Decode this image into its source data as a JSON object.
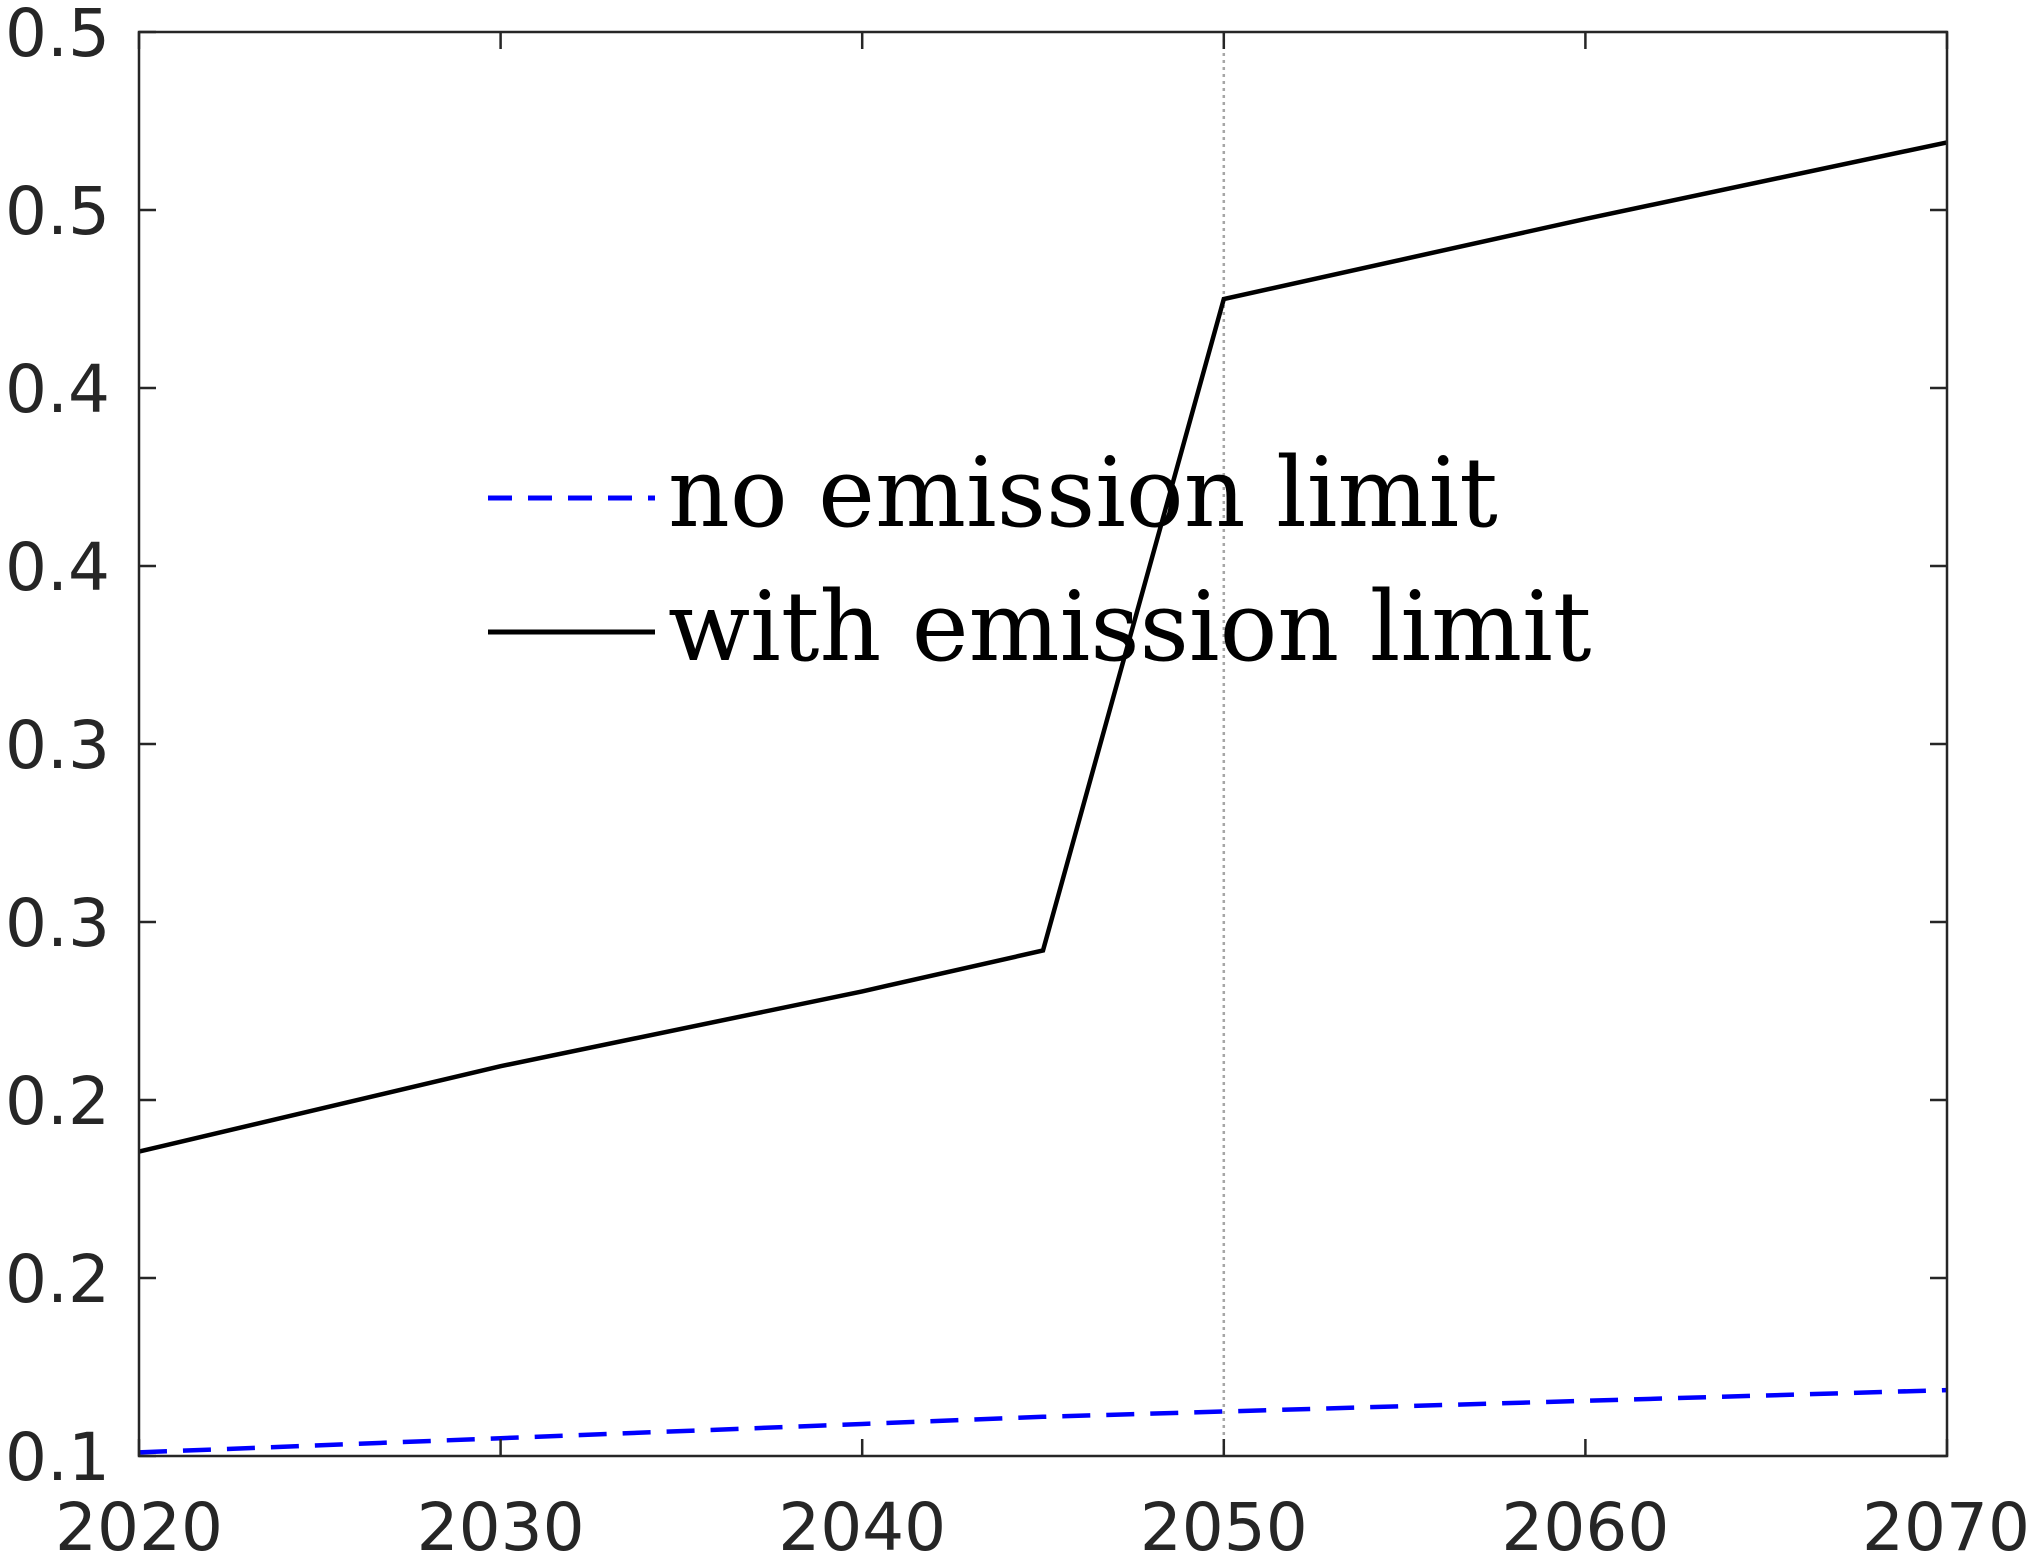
{
  "chart_data": {
    "type": "line",
    "title": "",
    "xlabel": "",
    "ylabel": "",
    "xlim": [
      2020,
      2070
    ],
    "ylim": [
      0.1,
      0.5
    ],
    "x_ticks": [
      {
        "value": 2020,
        "label": "2020"
      },
      {
        "value": 2030,
        "label": "2030"
      },
      {
        "value": 2040,
        "label": "2040"
      },
      {
        "value": 2050,
        "label": "2050"
      },
      {
        "value": 2060,
        "label": "2060"
      },
      {
        "value": 2070,
        "label": "2070"
      }
    ],
    "y_ticks": [
      {
        "value": 0.1,
        "label": "0.1"
      },
      {
        "value": 0.15,
        "label": "0.2"
      },
      {
        "value": 0.2,
        "label": "0.2"
      },
      {
        "value": 0.25,
        "label": "0.3"
      },
      {
        "value": 0.3,
        "label": "0.3"
      },
      {
        "value": 0.35,
        "label": "0.4"
      },
      {
        "value": 0.4,
        "label": "0.4"
      },
      {
        "value": 0.45,
        "label": "0.5"
      },
      {
        "value": 0.5,
        "label": "0.5"
      }
    ],
    "reference_line": {
      "x": 2050,
      "color": "#a6a6a6",
      "style": "dotted"
    },
    "legend_position": "center-left",
    "series": [
      {
        "name": "no emission limit",
        "color": "#0000ff",
        "style": "dashed",
        "x": [
          2020,
          2030,
          2040,
          2045,
          2050,
          2060,
          2070
        ],
        "y": [
          0.101,
          0.105,
          0.109,
          0.111,
          0.1125,
          0.1155,
          0.1185
        ]
      },
      {
        "name": "with emission limit",
        "color": "#000000",
        "style": "solid",
        "x": [
          2020,
          2030,
          2040,
          2045,
          2050,
          2060,
          2070
        ],
        "y": [
          0.1855,
          0.2095,
          0.2305,
          0.242,
          0.425,
          0.4475,
          0.469
        ]
      }
    ]
  }
}
